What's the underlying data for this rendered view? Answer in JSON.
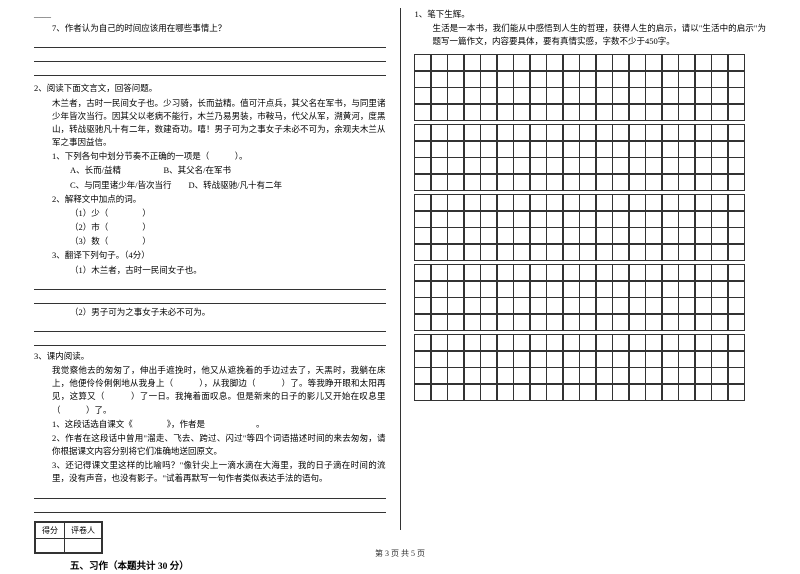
{
  "left": {
    "q7_stub": "____",
    "q7": "7、作者认为自己的时间应该用在哪些事情上？",
    "p2_head": "2、阅读下面文言文，回答问题。",
    "p2_body": "木兰者，古时一民间女子也。少习骑，长而益精。值可汗点兵，其父名在军书，与同里诸少年皆次当行。因其父以老病不能行，木兰乃易男装，市鞍马，代父从军，溯黄河，度黑山，转战驱驰凡十有二年，数建奇功。嘻！男子可为之事女子未必不可为，余观夫木兰从军之事因益信。",
    "q2_1": "1、下列各句中划分节奏不正确的一项是（　　　）。",
    "q2_1a": "A、长而/益精　　　　　B、其父名/在军书",
    "q2_1b": "C、与同里诸少年/皆次当行　　D、转战驱驰/凡十有二年",
    "q2_2": "2、解释文中加点的词。",
    "q2_2a": "（1）少（　　　　）",
    "q2_2b": "（2）市（　　　　）",
    "q2_2c": "（3）数（　　　　）",
    "q2_3": "3、翻译下列句子。（4分）",
    "q2_3a": "（1）木兰者，古时一民间女子也。",
    "q2_3b": "（2）男子可为之事女子未必不可为。",
    "p3_head": "3、课内阅读。",
    "p3_body": "我觉察他去的匆匆了，伸出手遮挽时，他又从遮挽着的手边过去了，天黑时，我躺在床上，他便伶伶俐俐地从我身上（　　　），从我脚边（　　　）了。等我睁开眼和太阳再见，这算又（　　　）了一日。我掩着面叹息。但是新来的日子的影儿又开始在叹息里（　　　）了。",
    "q3_1": "1、这段话选自课文《　　　　》，作者是　　　　　　。",
    "q3_2": "2、作者在这段话中曾用\"溜走、飞去、跨过、闪过\"等四个词语描述时间的来去匆匆，请你根据课文内容分别将它们准确地送回原文。",
    "q3_3": "3、还记得课文里这样的比喻吗？\"像针尖上一滴水滴在大海里，我的日子滴在时间的流里，没有声音，也没有影子。\"试着再默写一句作者类似表达手法的语句。",
    "score_labels": [
      "得分",
      "评卷人"
    ],
    "section5": "五、习作（本题共计 30 分）"
  },
  "right": {
    "q1": "1、笔下生辉。",
    "q1_body": "生活是一本书，我们能从中感悟到人生的哲理，获得人生的启示，请以\"生活中的启示\"为题写一篇作文，内容要具体，要有真情实感，字数不少于450字。",
    "grid": {
      "rows": 20,
      "cols": 20,
      "blocksOf": 4
    }
  },
  "footer": "第 3 页  共 5 页",
  "style": {
    "bg": "#ffffff",
    "text": "#000000",
    "border": "#333333",
    "fontsize_body": 8.5,
    "fontsize_title": 9.5
  }
}
